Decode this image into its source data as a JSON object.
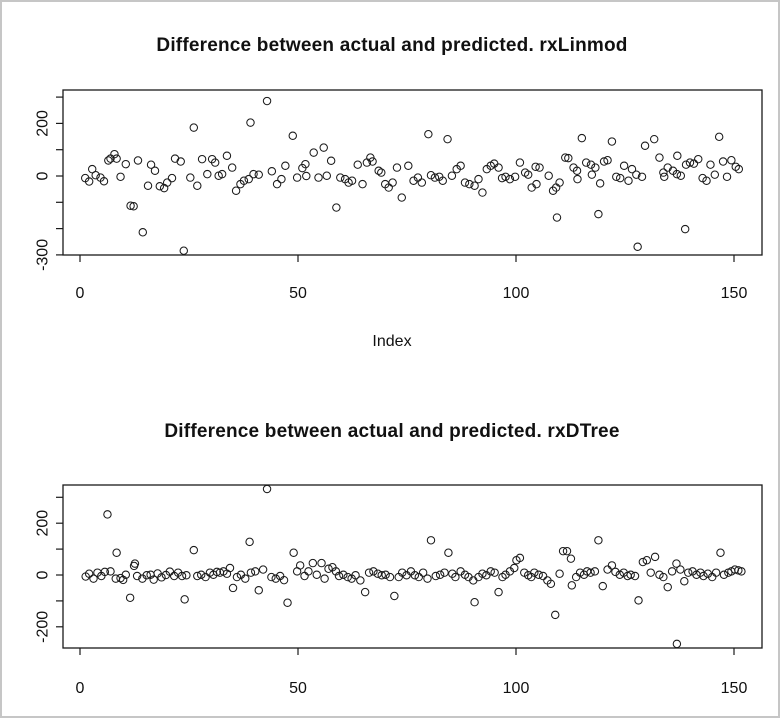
{
  "window": {
    "background": "#ffffff",
    "border_color": "#c6c6c6"
  },
  "text_color": "#111111",
  "marker_color": "#1a1a1a",
  "chart_data": [
    {
      "type": "scatter",
      "title": "Difference between actual and predicted. rxLinmod",
      "xlabel": "Index",
      "ylabel": "",
      "marker": "open-circle",
      "grid": false,
      "xlim": [
        0,
        155
      ],
      "ylim": [
        -300,
        300
      ],
      "xticks": {
        "values": [
          0,
          50,
          100,
          150
        ],
        "labels": [
          "0",
          "50",
          "100",
          "150"
        ]
      },
      "yticks": {
        "values": [
          300,
          200,
          100,
          0,
          -100,
          -200,
          -300
        ],
        "labeled": [
          {
            "value": 200,
            "label": "200"
          },
          {
            "value": 0,
            "label": "0"
          },
          {
            "value": -300,
            "label": "-300"
          }
        ]
      },
      "points": [
        [
          1.2,
          -8
        ],
        [
          2.1,
          -21
        ],
        [
          2.8,
          26
        ],
        [
          3.6,
          3
        ],
        [
          4.7,
          -6
        ],
        [
          5.5,
          -20
        ],
        [
          6.5,
          59
        ],
        [
          7.0,
          66
        ],
        [
          7.9,
          83
        ],
        [
          8.4,
          66
        ],
        [
          9.3,
          -3
        ],
        [
          10.5,
          45
        ],
        [
          11.6,
          -113
        ],
        [
          12.3,
          -115
        ],
        [
          13.3,
          59
        ],
        [
          14.4,
          -214
        ],
        [
          15.6,
          -37
        ],
        [
          16.3,
          43
        ],
        [
          17.2,
          20
        ],
        [
          18.3,
          -39
        ],
        [
          19.3,
          -46
        ],
        [
          20.0,
          -25
        ],
        [
          21.1,
          -8
        ],
        [
          21.8,
          66
        ],
        [
          23.1,
          55
        ],
        [
          23.8,
          -284
        ],
        [
          25.3,
          -6
        ],
        [
          26.1,
          184
        ],
        [
          26.9,
          -37
        ],
        [
          28.0,
          64
        ],
        [
          29.2,
          7
        ],
        [
          30.3,
          64
        ],
        [
          31.0,
          51
        ],
        [
          31.8,
          1
        ],
        [
          32.6,
          7
        ],
        [
          33.7,
          77
        ],
        [
          34.9,
          32
        ],
        [
          35.8,
          -56
        ],
        [
          36.8,
          -31
        ],
        [
          37.6,
          -18
        ],
        [
          38.7,
          -12
        ],
        [
          39.1,
          203
        ],
        [
          39.8,
          7
        ],
        [
          41.0,
          5
        ],
        [
          42.9,
          285
        ],
        [
          44.0,
          18
        ],
        [
          45.2,
          -31
        ],
        [
          46.2,
          -12
        ],
        [
          47.1,
          39
        ],
        [
          48.8,
          153
        ],
        [
          49.8,
          -6
        ],
        [
          51.0,
          30
        ],
        [
          51.7,
          45
        ],
        [
          51.9,
          0
        ],
        [
          53.6,
          89
        ],
        [
          54.7,
          -6
        ],
        [
          55.9,
          108
        ],
        [
          56.6,
          1
        ],
        [
          57.6,
          58
        ],
        [
          58.8,
          -120
        ],
        [
          59.7,
          -6
        ],
        [
          60.8,
          -12
        ],
        [
          61.6,
          -25
        ],
        [
          62.4,
          -18
        ],
        [
          63.7,
          43
        ],
        [
          64.8,
          -31
        ],
        [
          65.8,
          51
        ],
        [
          66.6,
          70
        ],
        [
          67.1,
          55
        ],
        [
          68.5,
          20
        ],
        [
          69.1,
          13
        ],
        [
          70.0,
          -31
        ],
        [
          70.8,
          -44
        ],
        [
          71.7,
          -25
        ],
        [
          72.7,
          32
        ],
        [
          73.8,
          -82
        ],
        [
          75.3,
          39
        ],
        [
          76.5,
          -18
        ],
        [
          77.5,
          -6
        ],
        [
          78.4,
          -25
        ],
        [
          79.9,
          159
        ],
        [
          80.5,
          3
        ],
        [
          81.4,
          -6
        ],
        [
          82.4,
          -3
        ],
        [
          83.2,
          -18
        ],
        [
          84.3,
          140
        ],
        [
          85.3,
          1
        ],
        [
          86.4,
          26
        ],
        [
          87.3,
          39
        ],
        [
          88.3,
          -25
        ],
        [
          89.3,
          -31
        ],
        [
          90.5,
          -37
        ],
        [
          91.4,
          -12
        ],
        [
          92.3,
          -63
        ],
        [
          93.3,
          26
        ],
        [
          94.2,
          39
        ],
        [
          95.0,
          47
        ],
        [
          96.0,
          32
        ],
        [
          96.8,
          -8
        ],
        [
          97.6,
          -3
        ],
        [
          98.6,
          -12
        ],
        [
          99.8,
          -3
        ],
        [
          100.9,
          51
        ],
        [
          102.1,
          13
        ],
        [
          102.8,
          5
        ],
        [
          103.6,
          -44
        ],
        [
          104.5,
          35
        ],
        [
          104.7,
          -31
        ],
        [
          105.4,
          32
        ],
        [
          107.5,
          1
        ],
        [
          108.5,
          -56
        ],
        [
          109.2,
          -44
        ],
        [
          109.4,
          -158
        ],
        [
          110.0,
          -25
        ],
        [
          111.3,
          70
        ],
        [
          112.0,
          68
        ],
        [
          113.2,
          32
        ],
        [
          114.0,
          20
        ],
        [
          114.1,
          -12
        ],
        [
          115.1,
          144
        ],
        [
          116.1,
          51
        ],
        [
          117.2,
          43
        ],
        [
          117.4,
          5
        ],
        [
          118.2,
          32
        ],
        [
          118.9,
          -145
        ],
        [
          119.3,
          -28
        ],
        [
          120.2,
          55
        ],
        [
          121.0,
          60
        ],
        [
          122.0,
          131
        ],
        [
          123.0,
          -3
        ],
        [
          123.9,
          -8
        ],
        [
          124.8,
          39
        ],
        [
          125.8,
          -18
        ],
        [
          126.6,
          26
        ],
        [
          127.6,
          5
        ],
        [
          127.9,
          -269
        ],
        [
          128.9,
          -3
        ],
        [
          129.6,
          115
        ],
        [
          131.7,
          140
        ],
        [
          132.9,
          70
        ],
        [
          133.8,
          13
        ],
        [
          134.0,
          -3
        ],
        [
          134.8,
          32
        ],
        [
          136.0,
          20
        ],
        [
          136.9,
          7
        ],
        [
          137.0,
          77
        ],
        [
          137.8,
          1
        ],
        [
          138.8,
          -202
        ],
        [
          139.0,
          43
        ],
        [
          139.9,
          51
        ],
        [
          140.8,
          47
        ],
        [
          141.8,
          64
        ],
        [
          142.8,
          -8
        ],
        [
          143.7,
          -18
        ],
        [
          144.6,
          43
        ],
        [
          145.6,
          5
        ],
        [
          146.6,
          149
        ],
        [
          147.5,
          55
        ],
        [
          148.4,
          -3
        ],
        [
          149.4,
          60
        ],
        [
          150.4,
          35
        ],
        [
          151.1,
          26
        ]
      ]
    },
    {
      "type": "scatter",
      "title": "Difference between actual and predicted. rxDTree",
      "xlabel": "",
      "ylabel": "",
      "marker": "open-circle",
      "grid": false,
      "xlim": [
        0,
        155
      ],
      "ylim": [
        -280,
        345
      ],
      "xticks": {
        "values": [
          0,
          50,
          100,
          150
        ],
        "labels": [
          "0",
          "50",
          "100",
          "150"
        ]
      },
      "yticks": {
        "values": [
          300,
          200,
          100,
          0,
          -100,
          -200
        ],
        "labeled": [
          {
            "value": 200,
            "label": "200"
          },
          {
            "value": 0,
            "label": "0"
          },
          {
            "value": -200,
            "label": "-200"
          }
        ]
      },
      "points": [
        [
          1.3,
          -6
        ],
        [
          2.1,
          5
        ],
        [
          3.1,
          -14
        ],
        [
          4.0,
          9
        ],
        [
          4.9,
          -4
        ],
        [
          5.7,
          12
        ],
        [
          6.3,
          234
        ],
        [
          7.0,
          14
        ],
        [
          8.2,
          -14
        ],
        [
          8.4,
          86
        ],
        [
          9.3,
          -12
        ],
        [
          9.9,
          -19
        ],
        [
          10.5,
          1
        ],
        [
          11.5,
          -88
        ],
        [
          12.4,
          35
        ],
        [
          12.6,
          44
        ],
        [
          13.1,
          -4
        ],
        [
          14.3,
          -14
        ],
        [
          15.3,
          -1
        ],
        [
          16.2,
          1
        ],
        [
          16.9,
          -18
        ],
        [
          17.8,
          6
        ],
        [
          18.7,
          -9
        ],
        [
          19.7,
          0
        ],
        [
          20.6,
          13
        ],
        [
          21.6,
          -4
        ],
        [
          22.5,
          9
        ],
        [
          23.4,
          -4
        ],
        [
          24.0,
          -94
        ],
        [
          24.4,
          -1
        ],
        [
          26.1,
          96
        ],
        [
          26.9,
          -4
        ],
        [
          27.8,
          1
        ],
        [
          28.8,
          -8
        ],
        [
          29.8,
          9
        ],
        [
          30.6,
          1
        ],
        [
          31.4,
          12
        ],
        [
          32.1,
          9
        ],
        [
          32.9,
          14
        ],
        [
          33.7,
          5
        ],
        [
          34.4,
          27
        ],
        [
          35.1,
          -50
        ],
        [
          36.0,
          -8
        ],
        [
          36.9,
          1
        ],
        [
          37.9,
          -14
        ],
        [
          38.9,
          128
        ],
        [
          39.2,
          9
        ],
        [
          40.2,
          14
        ],
        [
          41.0,
          -59
        ],
        [
          42.0,
          21
        ],
        [
          42.9,
          332
        ],
        [
          43.9,
          -8
        ],
        [
          44.9,
          -14
        ],
        [
          45.9,
          -4
        ],
        [
          46.8,
          -20
        ],
        [
          47.6,
          -107
        ],
        [
          49.0,
          86
        ],
        [
          49.8,
          14
        ],
        [
          50.5,
          37
        ],
        [
          51.5,
          -4
        ],
        [
          52.4,
          14
        ],
        [
          53.4,
          46
        ],
        [
          54.3,
          1
        ],
        [
          55.4,
          46
        ],
        [
          56.1,
          -14
        ],
        [
          57.0,
          24
        ],
        [
          57.9,
          30
        ],
        [
          58.7,
          14
        ],
        [
          59.4,
          -4
        ],
        [
          60.4,
          1
        ],
        [
          61.4,
          -8
        ],
        [
          62.3,
          -14
        ],
        [
          63.2,
          -1
        ],
        [
          64.3,
          -21
        ],
        [
          65.4,
          -66
        ],
        [
          66.3,
          9
        ],
        [
          67.3,
          14
        ],
        [
          68.3,
          5
        ],
        [
          69.2,
          -1
        ],
        [
          70.1,
          1
        ],
        [
          71.1,
          -8
        ],
        [
          72.1,
          -81
        ],
        [
          73.1,
          -8
        ],
        [
          73.9,
          9
        ],
        [
          74.9,
          -1
        ],
        [
          75.9,
          14
        ],
        [
          76.8,
          -1
        ],
        [
          77.7,
          -8
        ],
        [
          78.7,
          9
        ],
        [
          79.7,
          -14
        ],
        [
          80.5,
          134
        ],
        [
          81.6,
          -4
        ],
        [
          82.6,
          1
        ],
        [
          83.6,
          9
        ],
        [
          84.5,
          86
        ],
        [
          85.4,
          5
        ],
        [
          86.1,
          -8
        ],
        [
          87.3,
          14
        ],
        [
          88.3,
          1
        ],
        [
          89.1,
          -8
        ],
        [
          90.2,
          -21
        ],
        [
          90.5,
          -105
        ],
        [
          91.4,
          -8
        ],
        [
          92.3,
          5
        ],
        [
          93.2,
          -1
        ],
        [
          94.2,
          14
        ],
        [
          95.1,
          9
        ],
        [
          96.0,
          -66
        ],
        [
          96.9,
          -8
        ],
        [
          97.6,
          1
        ],
        [
          98.6,
          14
        ],
        [
          99.6,
          27
        ],
        [
          100.1,
          57
        ],
        [
          100.9,
          66
        ],
        [
          101.9,
          9
        ],
        [
          102.8,
          -1
        ],
        [
          103.5,
          -8
        ],
        [
          104.2,
          9
        ],
        [
          105.2,
          1
        ],
        [
          106.2,
          -4
        ],
        [
          107.2,
          -21
        ],
        [
          108.0,
          -34
        ],
        [
          109.0,
          -154
        ],
        [
          110.0,
          5
        ],
        [
          110.8,
          92
        ],
        [
          111.7,
          92
        ],
        [
          112.6,
          63
        ],
        [
          112.8,
          -40
        ],
        [
          113.8,
          -8
        ],
        [
          114.7,
          9
        ],
        [
          115.6,
          1
        ],
        [
          116.3,
          14
        ],
        [
          117.1,
          9
        ],
        [
          118.1,
          14
        ],
        [
          118.9,
          134
        ],
        [
          119.9,
          -43
        ],
        [
          121.0,
          21
        ],
        [
          122.0,
          37
        ],
        [
          122.8,
          12
        ],
        [
          123.8,
          1
        ],
        [
          124.7,
          9
        ],
        [
          125.6,
          -4
        ],
        [
          126.3,
          1
        ],
        [
          127.3,
          -4
        ],
        [
          128.1,
          -98
        ],
        [
          129.1,
          50
        ],
        [
          130.0,
          57
        ],
        [
          130.9,
          9
        ],
        [
          131.9,
          70
        ],
        [
          132.9,
          1
        ],
        [
          133.8,
          -8
        ],
        [
          134.8,
          -47
        ],
        [
          135.8,
          14
        ],
        [
          136.8,
          44
        ],
        [
          136.9,
          -266
        ],
        [
          137.7,
          21
        ],
        [
          138.6,
          -24
        ],
        [
          139.5,
          9
        ],
        [
          140.5,
          14
        ],
        [
          141.4,
          1
        ],
        [
          142.3,
          9
        ],
        [
          143.0,
          -4
        ],
        [
          144.0,
          5
        ],
        [
          145.0,
          -8
        ],
        [
          145.9,
          9
        ],
        [
          146.9,
          86
        ],
        [
          147.7,
          1
        ],
        [
          148.7,
          9
        ],
        [
          149.4,
          14
        ],
        [
          150.2,
          21
        ],
        [
          151.0,
          18
        ],
        [
          151.7,
          14
        ]
      ]
    }
  ]
}
